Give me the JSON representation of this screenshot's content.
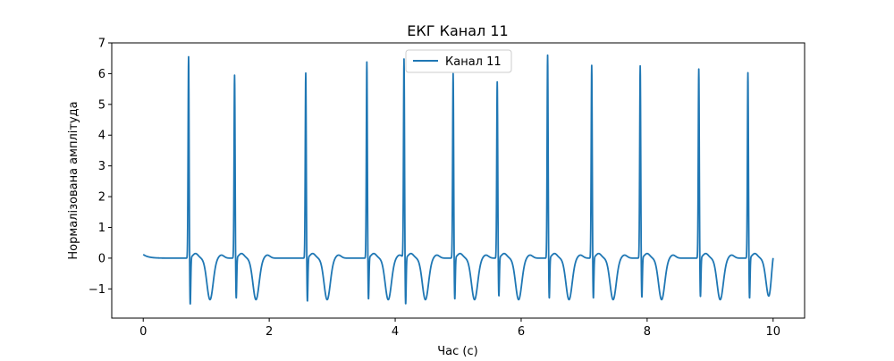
{
  "chart_data": {
    "type": "line",
    "title": "ЕКГ Канал 11",
    "xlabel": "Час (с)",
    "ylabel": "Нормалізована амплітуда",
    "xlim": [
      -0.5,
      10.5
    ],
    "ylim": [
      -1.95,
      7.0
    ],
    "xticks": [
      0,
      2,
      4,
      6,
      8,
      10
    ],
    "yticks": [
      -1,
      0,
      1,
      2,
      3,
      4,
      5,
      6,
      7
    ],
    "xtick_labels": [
      "0",
      "2",
      "4",
      "6",
      "8",
      "10"
    ],
    "ytick_labels": [
      "−1",
      "0",
      "1",
      "2",
      "3",
      "4",
      "5",
      "6",
      "7"
    ],
    "grid": false,
    "legend": "top-center",
    "series": [
      {
        "name": "Канал 11",
        "color": "#1f77b4",
        "beats": [
          {
            "t": 0.72,
            "peak": 6.55,
            "trough": -1.55
          },
          {
            "t": 1.45,
            "peak": 5.95,
            "trough": -1.35
          },
          {
            "t": 2.58,
            "peak": 6.02,
            "trough": -1.45
          },
          {
            "t": 3.55,
            "peak": 6.38,
            "trough": -1.38
          },
          {
            "t": 4.14,
            "peak": 6.45,
            "trough": -1.55
          },
          {
            "t": 4.92,
            "peak": 6.0,
            "trough": -1.38
          },
          {
            "t": 5.62,
            "peak": 5.73,
            "trough": -1.28
          },
          {
            "t": 6.42,
            "peak": 6.6,
            "trough": -1.35
          },
          {
            "t": 7.12,
            "peak": 6.27,
            "trough": -1.35
          },
          {
            "t": 7.89,
            "peak": 6.25,
            "trough": -1.32
          },
          {
            "t": 8.82,
            "peak": 6.15,
            "trough": -1.3
          },
          {
            "t": 9.6,
            "peak": 6.03,
            "trough": -1.35
          }
        ],
        "start": {
          "t": 0.0,
          "value": 0.12
        },
        "end": {
          "t": 10.0,
          "value": 0.65
        }
      }
    ]
  }
}
